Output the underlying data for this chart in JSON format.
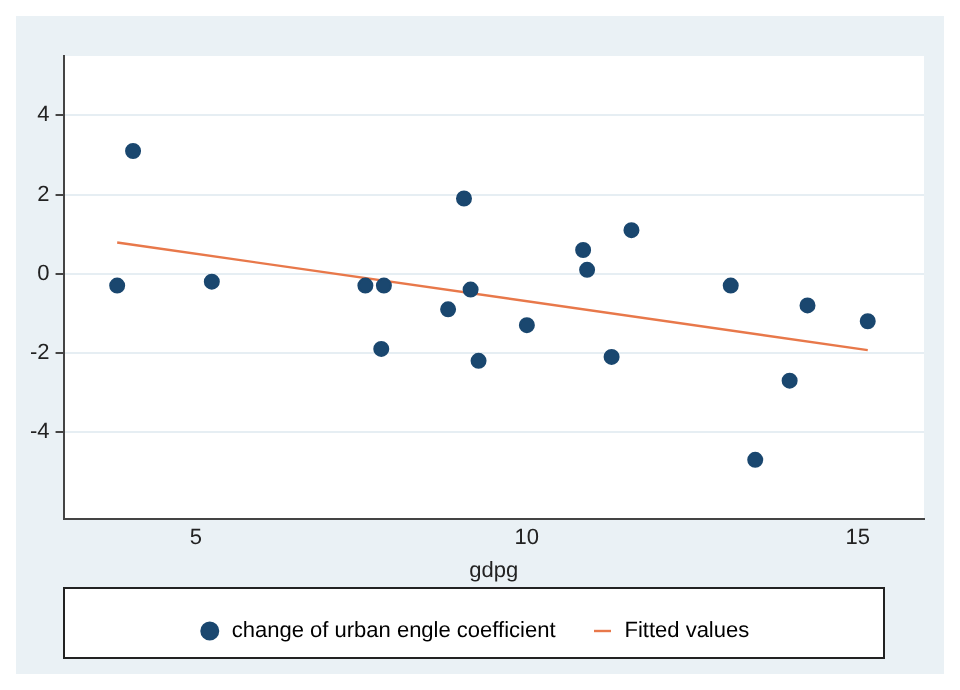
{
  "chart_data": {
    "type": "scatter",
    "xlabel": "gdpg",
    "xlim": [
      3,
      16
    ],
    "xticks": [
      5,
      10,
      15
    ],
    "ylim": [
      -6.2,
      5.5
    ],
    "yticks": [
      -4,
      -2,
      0,
      2,
      4
    ],
    "grid": "y",
    "legend": "bottom",
    "series": [
      {
        "name": "change of urban engle coefficient",
        "type": "scatter",
        "marker": "circle",
        "color": "#1a476f",
        "x": [
          3.81,
          4.05,
          5.24,
          7.56,
          7.84,
          7.8,
          8.81,
          9.05,
          9.15,
          9.27,
          10.0,
          10.85,
          10.91,
          11.28,
          11.58,
          13.08,
          13.45,
          13.97,
          14.24,
          15.15
        ],
        "values": [
          -0.3,
          3.1,
          -0.2,
          -0.3,
          -0.3,
          -1.9,
          -0.9,
          1.9,
          -0.4,
          -2.2,
          -1.3,
          0.6,
          0.1,
          -2.1,
          1.1,
          -0.3,
          -4.7,
          -2.7,
          -0.8,
          -1.2
        ]
      },
      {
        "name": "Fitted values",
        "type": "line",
        "marker": "none",
        "color": "#e8784a",
        "x": [
          3.81,
          15.15
        ],
        "values": [
          0.79,
          -1.93
        ]
      }
    ]
  }
}
